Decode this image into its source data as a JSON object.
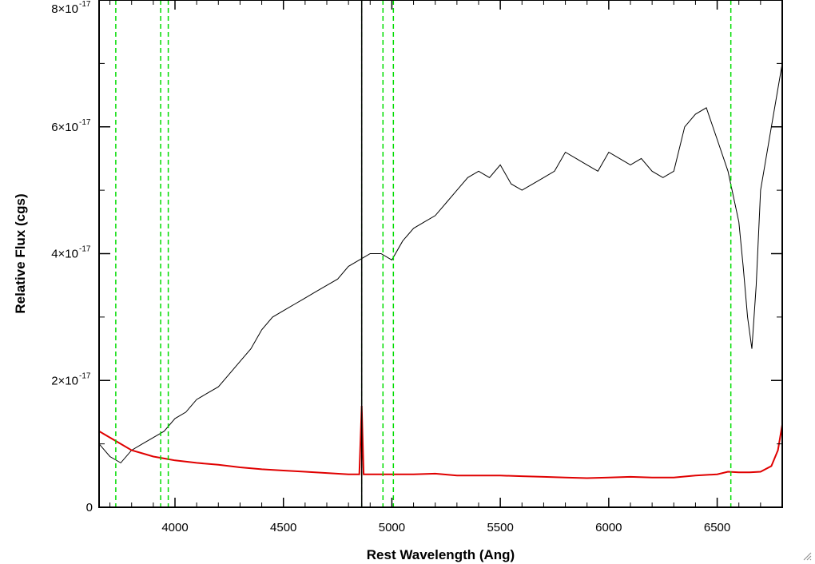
{
  "chart_data": {
    "type": "line",
    "xlabel": "Rest Wavelength (Ang)",
    "ylabel": "Relative Flux (cgs)",
    "xlim": [
      3650,
      6800
    ],
    "ylim": [
      0,
      8e-17
    ],
    "x_ticks": [
      {
        "value": 4000,
        "label": "4000"
      },
      {
        "value": 4500,
        "label": "4500"
      },
      {
        "value": 5000,
        "label": "5000"
      },
      {
        "value": 5500,
        "label": "5500"
      },
      {
        "value": 6000,
        "label": "6000"
      },
      {
        "value": 6500,
        "label": "6500"
      }
    ],
    "y_ticks": [
      {
        "value": 0,
        "label": "0",
        "exp": ""
      },
      {
        "value": 2e-17,
        "label": "2×10",
        "exp": "-17"
      },
      {
        "value": 4e-17,
        "label": "4×10",
        "exp": "-17"
      },
      {
        "value": 6e-17,
        "label": "6×10",
        "exp": "-17"
      },
      {
        "value": 8e-17,
        "label": "8×10",
        "exp": "-17"
      }
    ],
    "series": [
      {
        "color": "#000000",
        "x": [
          3650,
          3700,
          3750,
          3800,
          3850,
          3900,
          3950,
          4000,
          4050,
          4100,
          4150,
          4200,
          4250,
          4300,
          4350,
          4400,
          4450,
          4500,
          4550,
          4600,
          4650,
          4700,
          4750,
          4800,
          4850,
          4900,
          4950,
          5000,
          5050,
          5100,
          5150,
          5200,
          5250,
          5300,
          5350,
          5400,
          5450,
          5500,
          5550,
          5600,
          5650,
          5700,
          5750,
          5800,
          5850,
          5900,
          5950,
          6000,
          6050,
          6100,
          6150,
          6200,
          6250,
          6300,
          6350,
          6400,
          6450,
          6500,
          6550,
          6600,
          6620,
          6640,
          6660,
          6680,
          6700,
          6750,
          6800
        ],
        "y": [
          1e-17,
          8e-18,
          7e-18,
          9e-18,
          1e-17,
          1.1e-17,
          1.2e-17,
          1.4e-17,
          1.5e-17,
          1.7e-17,
          1.8e-17,
          1.9e-17,
          2.1e-17,
          2.3e-17,
          2.5e-17,
          2.8e-17,
          3e-17,
          3.1e-17,
          3.2e-17,
          3.3e-17,
          3.4e-17,
          3.5e-17,
          3.6e-17,
          3.8e-17,
          3.9e-17,
          4e-17,
          4e-17,
          3.9e-17,
          4.2e-17,
          4.4e-17,
          4.5e-17,
          4.6e-17,
          4.8e-17,
          5e-17,
          5.2e-17,
          5.3e-17,
          5.2e-17,
          5.4e-17,
          5.1e-17,
          5e-17,
          5.1e-17,
          5.2e-17,
          5.3e-17,
          5.6e-17,
          5.5e-17,
          5.4e-17,
          5.3e-17,
          5.6e-17,
          5.5e-17,
          5.4e-17,
          5.5e-17,
          5.3e-17,
          5.2e-17,
          5.3e-17,
          6e-17,
          6.2e-17,
          6.3e-17,
          5.8e-17,
          5.3e-17,
          4.5e-17,
          3.8e-17,
          3e-17,
          2.5e-17,
          3.5e-17,
          5e-17,
          6e-17,
          7e-17
        ]
      },
      {
        "color": "#e00000",
        "x": [
          3650,
          3700,
          3750,
          3800,
          3850,
          3900,
          3950,
          4000,
          4100,
          4200,
          4300,
          4400,
          4500,
          4600,
          4700,
          4800,
          4850,
          4861,
          4870,
          4900,
          5000,
          5100,
          5200,
          5300,
          5400,
          5500,
          5600,
          5700,
          5800,
          5900,
          6000,
          6100,
          6200,
          6300,
          6400,
          6500,
          6550,
          6600,
          6650,
          6700,
          6750,
          6780,
          6800
        ],
        "y": [
          1.2e-17,
          1.1e-17,
          1e-17,
          9e-18,
          8.5e-18,
          8e-18,
          7.7e-18,
          7.4e-18,
          7e-18,
          6.7e-18,
          6.3e-18,
          6e-18,
          5.8e-18,
          5.6e-18,
          5.4e-18,
          5.2e-18,
          5.2e-18,
          1.6e-17,
          5.2e-18,
          5.2e-18,
          5.2e-18,
          5.2e-18,
          5.3e-18,
          5e-18,
          5e-18,
          5e-18,
          4.9e-18,
          4.8e-18,
          4.7e-18,
          4.6e-18,
          4.7e-18,
          4.8e-18,
          4.7e-18,
          4.7e-18,
          5e-18,
          5.2e-18,
          5.6e-18,
          5.5e-18,
          5.5e-18,
          5.6e-18,
          6.5e-18,
          9e-18,
          1.3e-17
        ]
      }
    ],
    "vertical_lines": [
      {
        "x": 3727,
        "style": "dashed",
        "color": "#00dd00"
      },
      {
        "x": 3934,
        "style": "dashed",
        "color": "#00dd00"
      },
      {
        "x": 3969,
        "style": "dashed",
        "color": "#00dd00"
      },
      {
        "x": 4861,
        "style": "dashed",
        "color": "#00dd00"
      },
      {
        "x": 4959,
        "style": "dashed",
        "color": "#00dd00"
      },
      {
        "x": 5007,
        "style": "dashed",
        "color": "#00dd00"
      },
      {
        "x": 6563,
        "style": "dashed",
        "color": "#00dd00"
      },
      {
        "x": 4861,
        "style": "solid",
        "color": "#000000"
      }
    ]
  }
}
